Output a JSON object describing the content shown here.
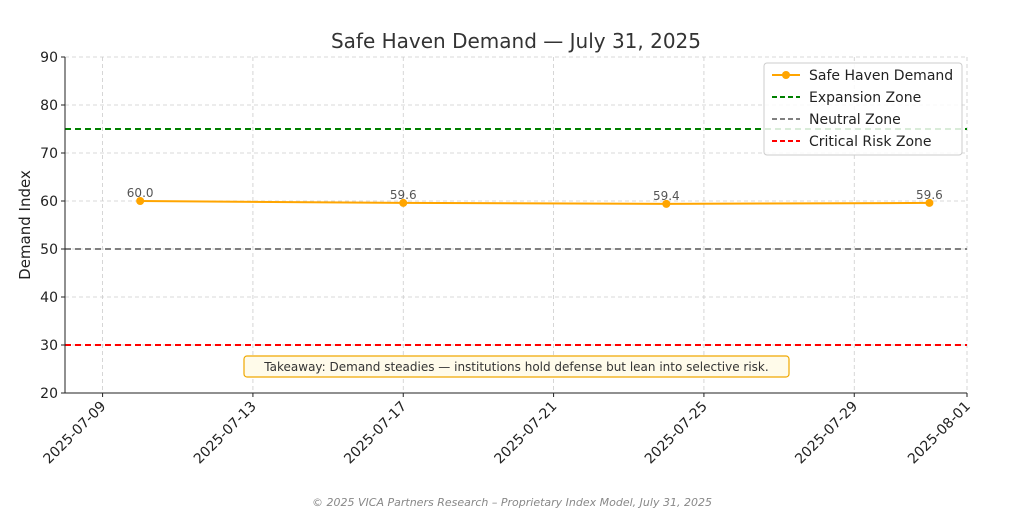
{
  "chart_data": {
    "type": "line",
    "title": "Safe Haven Demand — July 31, 2025",
    "ylabel": "Demand Index",
    "xlabel": "",
    "ylim": [
      20,
      90
    ],
    "yticks": [
      "20",
      "30",
      "40",
      "50",
      "60",
      "70",
      "80",
      "90"
    ],
    "xlim": [
      "2025-07-08",
      "2025-08-01"
    ],
    "xticks": [
      "2025-07-09",
      "2025-07-13",
      "2025-07-17",
      "2025-07-21",
      "2025-07-25",
      "2025-07-29",
      "2025-08-01"
    ],
    "grid": true,
    "legend_position": "top-right",
    "series": [
      {
        "name": "Safe Haven Demand",
        "color": "#FFA500",
        "x": [
          "2025-07-10",
          "2025-07-17",
          "2025-07-24",
          "2025-07-31"
        ],
        "values": [
          60.0,
          59.6,
          59.4,
          59.6
        ],
        "labels": [
          "60.0",
          "59.6",
          "59.4",
          "59.6"
        ]
      }
    ],
    "reference_lines": [
      {
        "name": "Expansion Zone",
        "y": 75,
        "color": "#008000"
      },
      {
        "name": "Neutral Zone",
        "y": 50,
        "color": "#808080"
      },
      {
        "name": "Critical Risk Zone",
        "y": 30,
        "color": "#FF0000"
      }
    ],
    "annotation": "Takeaway: Demand steadies — institutions hold defense but lean into selective risk.",
    "footer": "© 2025 VICA Partners Research – Proprietary Index Model, July 31, 2025"
  }
}
